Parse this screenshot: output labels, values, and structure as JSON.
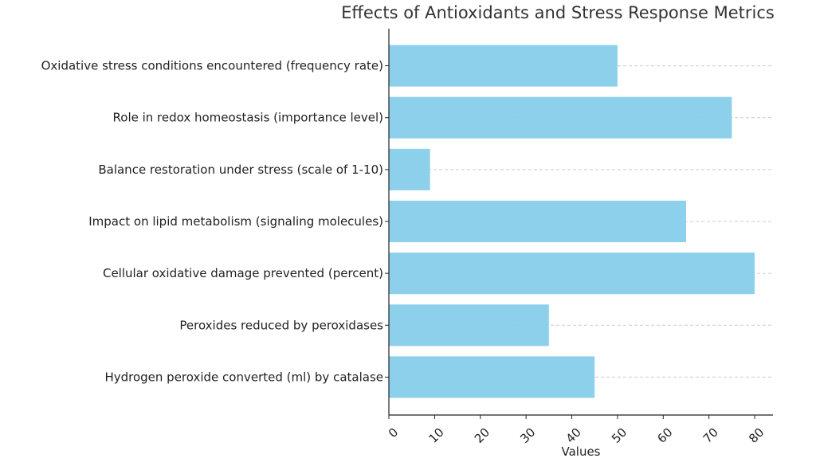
{
  "chart_data": {
    "type": "bar",
    "orientation": "horizontal",
    "title": "Effects of Antioxidants and Stress Response Metrics",
    "xlabel": "Values",
    "ylabel": "",
    "categories": [
      "Hydrogen peroxide converted (ml) by catalase",
      "Peroxides reduced by peroxidases",
      "Cellular oxidative damage prevented (percent)",
      "Impact on lipid metabolism (signaling molecules)",
      "Balance restoration under stress (scale of 1-10)",
      "Role in redox homeostasis (importance level)",
      "Oxidative stress conditions encountered (frequency rate)"
    ],
    "values": [
      45,
      35,
      80,
      65,
      9,
      75,
      50
    ],
    "xlim": [
      0,
      84
    ],
    "xticks": [
      0,
      10,
      20,
      30,
      40,
      50,
      60,
      70,
      80
    ],
    "grid": "horizontal dashed",
    "bar_color": "#87CEEB"
  }
}
